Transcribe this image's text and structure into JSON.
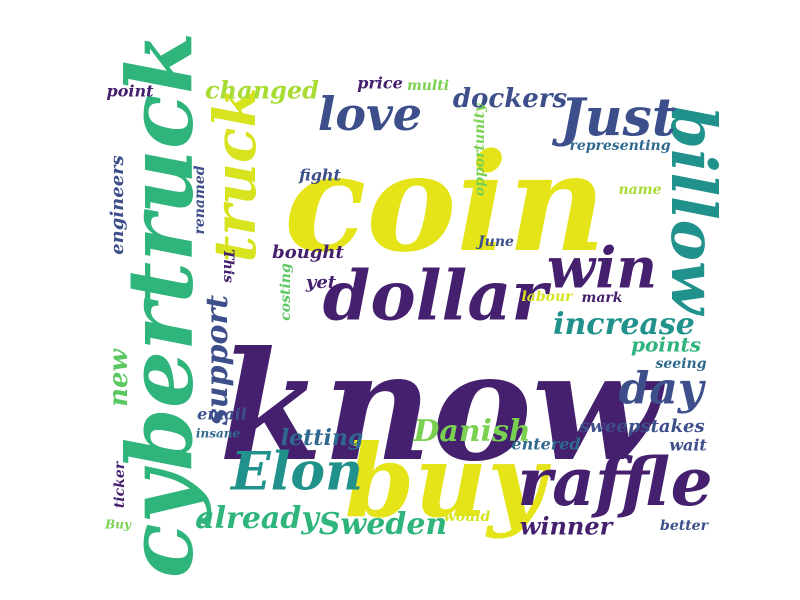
{
  "palette": {
    "purple": "#45206e",
    "indigo": "#3d4f8a",
    "blue": "#2f6a8e",
    "teal": "#21918c",
    "green": "#2fb47c",
    "lightgreen": "#7ad151",
    "yellow": "#e4e419"
  },
  "words": [
    {
      "text": "know",
      "color": "#45206e"
    },
    {
      "text": "coin",
      "color": "#e4e419"
    },
    {
      "text": "cybertruck",
      "color": "#2fb47c"
    },
    {
      "text": "buy",
      "color": "#e4e419"
    },
    {
      "text": "dollar",
      "color": "#45206e"
    },
    {
      "text": "billow",
      "color": "#21918c"
    },
    {
      "text": "raffle",
      "color": "#45206e"
    },
    {
      "text": "truck",
      "color": "#d6e31e"
    },
    {
      "text": "win",
      "color": "#45206e"
    },
    {
      "text": "Just",
      "color": "#3d4f8a"
    },
    {
      "text": "love",
      "color": "#3d4f8a"
    },
    {
      "text": "Elon",
      "color": "#21918c"
    },
    {
      "text": "day",
      "color": "#3d4f8a"
    },
    {
      "text": "increase",
      "color": "#21918c"
    },
    {
      "text": "support",
      "color": "#3d4f8a"
    },
    {
      "text": "Danish",
      "color": "#7ad151"
    },
    {
      "text": "already",
      "color": "#2fb47c"
    },
    {
      "text": "Sweden",
      "color": "#2fb47c"
    },
    {
      "text": "dockers",
      "color": "#3d4f8a"
    },
    {
      "text": "changed",
      "color": "#a8db34"
    },
    {
      "text": "winner",
      "color": "#45206e"
    },
    {
      "text": "new",
      "color": "#5cc863"
    },
    {
      "text": "letting",
      "color": "#2f6a8e"
    },
    {
      "text": "points",
      "color": "#2fb47c"
    },
    {
      "text": "sweepstakes",
      "color": "#3d4f8a"
    },
    {
      "text": "price",
      "color": "#45206e"
    },
    {
      "text": "point",
      "color": "#45206e"
    },
    {
      "text": "multi",
      "color": "#7ad151"
    },
    {
      "text": "engineers",
      "color": "#3d4f8a"
    },
    {
      "text": "renamed",
      "color": "#3d4f8a"
    },
    {
      "text": "fight",
      "color": "#3d4f8a"
    },
    {
      "text": "opportunity",
      "color": "#7ad151"
    },
    {
      "text": "representing",
      "color": "#2f6a8e"
    },
    {
      "text": "name",
      "color": "#a8db34"
    },
    {
      "text": "June",
      "color": "#3d4f8a"
    },
    {
      "text": "bought",
      "color": "#45206e"
    },
    {
      "text": "costing",
      "color": "#5cc863"
    },
    {
      "text": "yet",
      "color": "#45206e"
    },
    {
      "text": "This",
      "color": "#45206e"
    },
    {
      "text": "labour",
      "color": "#d6e31e"
    },
    {
      "text": "mark",
      "color": "#45206e"
    },
    {
      "text": "seeing",
      "color": "#2f6a8e"
    },
    {
      "text": "email",
      "color": "#3d4f8a"
    },
    {
      "text": "insane",
      "color": "#2f6a8e"
    },
    {
      "text": "entered",
      "color": "#2f6a8e"
    },
    {
      "text": "wait",
      "color": "#3d4f8a"
    },
    {
      "text": "ticker",
      "color": "#45206e"
    },
    {
      "text": "Buy",
      "color": "#7ad151"
    },
    {
      "text": "would",
      "color": "#d6e31e"
    },
    {
      "text": "better",
      "color": "#3d4f8a"
    }
  ]
}
